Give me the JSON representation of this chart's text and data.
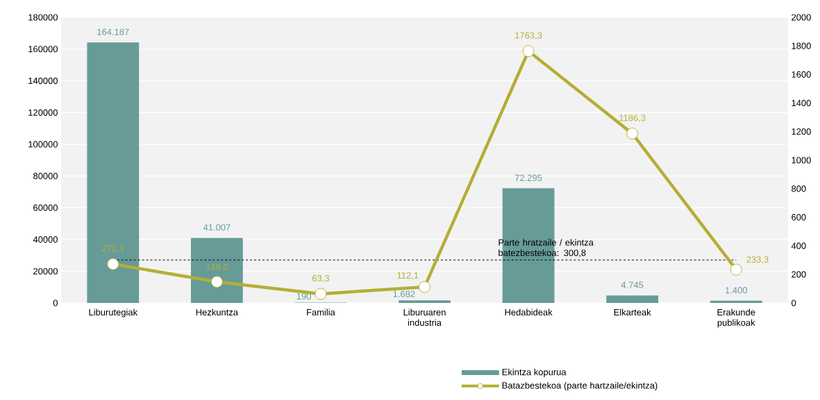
{
  "chart_data": {
    "type": "bar",
    "categories": [
      "Liburutegiak",
      "Hezkuntza",
      "Familia",
      "Liburuaren industria",
      "Hedabideak",
      "Elkarteak",
      "Erakunde publikoak"
    ],
    "series": [
      {
        "name": "Ekintza kopurua",
        "color": "#679b98",
        "values": [
          164187,
          41007,
          190,
          1682,
          72295,
          4745,
          1400
        ],
        "value_labels": [
          "164.187",
          "41.007",
          "190",
          "1.682",
          "72.295",
          "4.745",
          "1.400"
        ]
      },
      {
        "name": "Batazbestekoa (parte hartzaile/ekintza)",
        "type": "line",
        "axis": "y2",
        "color": "#b5ae36",
        "values": [
          272.3,
          148.0,
          63.3,
          112.1,
          1763.3,
          1186.3,
          233.3
        ],
        "value_labels": [
          "272,3",
          "148.0",
          "63,3",
          "112,1",
          "1763,3",
          "1186,3",
          "233,3"
        ]
      }
    ],
    "ylim": [
      0,
      180000
    ],
    "yticks": [
      0,
      20000,
      40000,
      60000,
      80000,
      100000,
      120000,
      140000,
      160000,
      180000
    ],
    "y2lim": [
      0,
      2000
    ],
    "y2ticks": [
      0,
      200,
      400,
      600,
      800,
      1000,
      1200,
      1400,
      1600,
      1800,
      2000
    ],
    "ref_lines": [
      {
        "axis": "y2",
        "value": 300.8,
        "label": "Parte hratzaile / ekintza batezbestekoa: 300,8",
        "color": "#000000",
        "line_style": "dashed"
      }
    ],
    "grid": "y",
    "marker": "circle",
    "line_style": "solid",
    "legend": "bottom right"
  }
}
